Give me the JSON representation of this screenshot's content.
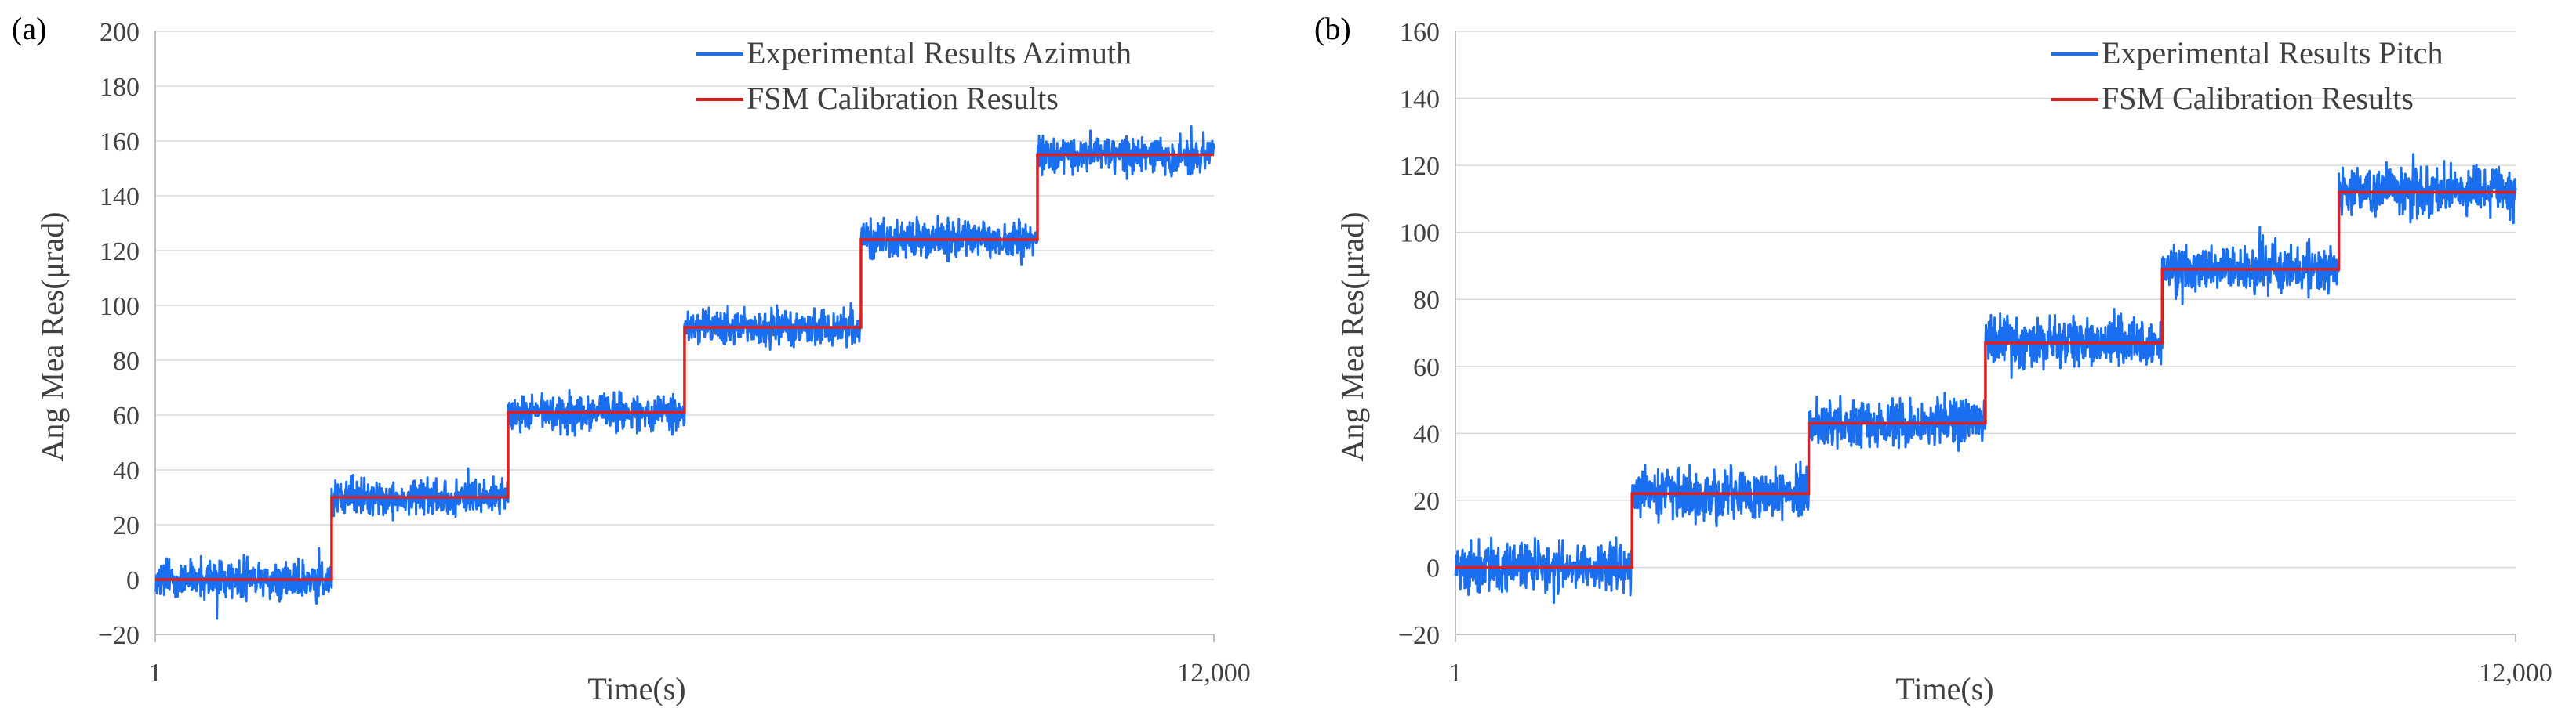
{
  "colors": {
    "experimental": "#1a6ff0",
    "calibration": "#e01e1e",
    "grid": "#d9d9d9",
    "axis": "#bfbfbf"
  },
  "chart_data": [
    {
      "panel_label": "(a)",
      "type": "line",
      "xlabel": "Time(s)",
      "ylabel": "Ang Mea Res(μrad)",
      "x_tick_labels": [
        "1",
        "12,000"
      ],
      "xlim": [
        1,
        12000
      ],
      "ylim": [
        -20,
        200
      ],
      "y_ticks": [
        -20,
        0,
        20,
        40,
        60,
        80,
        100,
        120,
        140,
        160,
        180,
        200
      ],
      "y_tick_labels": [
        "−20",
        "0",
        "20",
        "40",
        "60",
        "80",
        "100",
        "120",
        "140",
        "160",
        "180",
        "200"
      ],
      "legend": [
        "Experimental Results Azimuth",
        "FSM Calibration Results"
      ],
      "legend_position": "top-right",
      "steps": [
        {
          "x_start": 1,
          "x_end": 2000,
          "value": 0
        },
        {
          "x_start": 2000,
          "x_end": 4000,
          "value": 30
        },
        {
          "x_start": 4000,
          "x_end": 6000,
          "value": 61
        },
        {
          "x_start": 6000,
          "x_end": 8000,
          "value": 92
        },
        {
          "x_start": 8000,
          "x_end": 10000,
          "value": 124
        },
        {
          "x_start": 10000,
          "x_end": 12000,
          "value": 155
        }
      ],
      "noise_amplitude": 4
    },
    {
      "panel_label": "(b)",
      "type": "line",
      "xlabel": "Time(s)",
      "ylabel": "Ang Mea Res(μrad)",
      "x_tick_labels": [
        "1",
        "12,000"
      ],
      "xlim": [
        1,
        12000
      ],
      "ylim": [
        -20,
        160
      ],
      "y_ticks": [
        -20,
        0,
        20,
        40,
        60,
        80,
        100,
        120,
        140,
        160
      ],
      "y_tick_labels": [
        "−20",
        "0",
        "20",
        "40",
        "60",
        "80",
        "100",
        "120",
        "140",
        "160"
      ],
      "legend": [
        "Experimental Results Pitch",
        "FSM Calibration Results"
      ],
      "legend_position": "top-right",
      "steps": [
        {
          "x_start": 1,
          "x_end": 2000,
          "value": 0
        },
        {
          "x_start": 2000,
          "x_end": 4000,
          "value": 22
        },
        {
          "x_start": 4000,
          "x_end": 6000,
          "value": 43
        },
        {
          "x_start": 6000,
          "x_end": 8000,
          "value": 67
        },
        {
          "x_start": 8000,
          "x_end": 10000,
          "value": 89
        },
        {
          "x_start": 10000,
          "x_end": 12000,
          "value": 112
        }
      ],
      "noise_amplitude": 4.5
    }
  ]
}
